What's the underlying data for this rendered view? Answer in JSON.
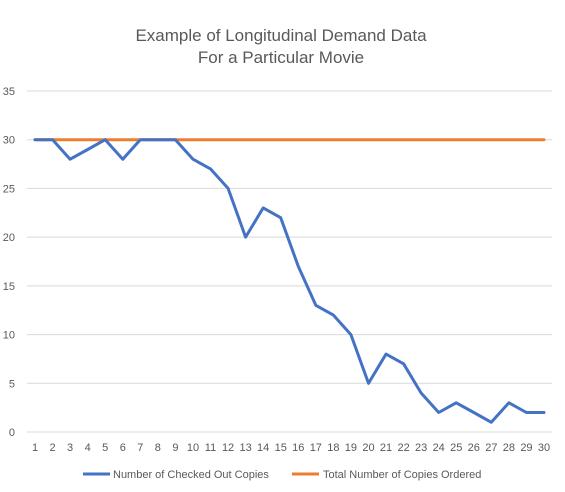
{
  "chart_data": {
    "type": "line",
    "title": [
      "Example of Longitudinal Demand Data",
      "For a Particular Movie"
    ],
    "xlabel": "",
    "ylabel": "",
    "x": [
      1,
      2,
      3,
      4,
      5,
      6,
      7,
      8,
      9,
      10,
      11,
      12,
      13,
      14,
      15,
      16,
      17,
      18,
      19,
      20,
      21,
      22,
      23,
      24,
      25,
      26,
      27,
      28,
      29,
      30
    ],
    "ylim": [
      0,
      35
    ],
    "yticks": [
      0,
      5,
      10,
      15,
      20,
      25,
      30,
      35
    ],
    "grid": true,
    "legend_position": "bottom",
    "series": [
      {
        "name": "Number of Checked Out Copies",
        "color": "#4472c4",
        "values": [
          30,
          30,
          28,
          29,
          30,
          28,
          30,
          30,
          30,
          28,
          27,
          25,
          20,
          23,
          22,
          17,
          13,
          12,
          10,
          5,
          8,
          7,
          4,
          2,
          3,
          2,
          1,
          3,
          2,
          2
        ]
      },
      {
        "name": "Total Number of Copies Ordered",
        "color": "#ed7d31",
        "values": [
          30,
          30,
          30,
          30,
          30,
          30,
          30,
          30,
          30,
          30,
          30,
          30,
          30,
          30,
          30,
          30,
          30,
          30,
          30,
          30,
          30,
          30,
          30,
          30,
          30,
          30,
          30,
          30,
          30,
          30
        ]
      }
    ]
  }
}
